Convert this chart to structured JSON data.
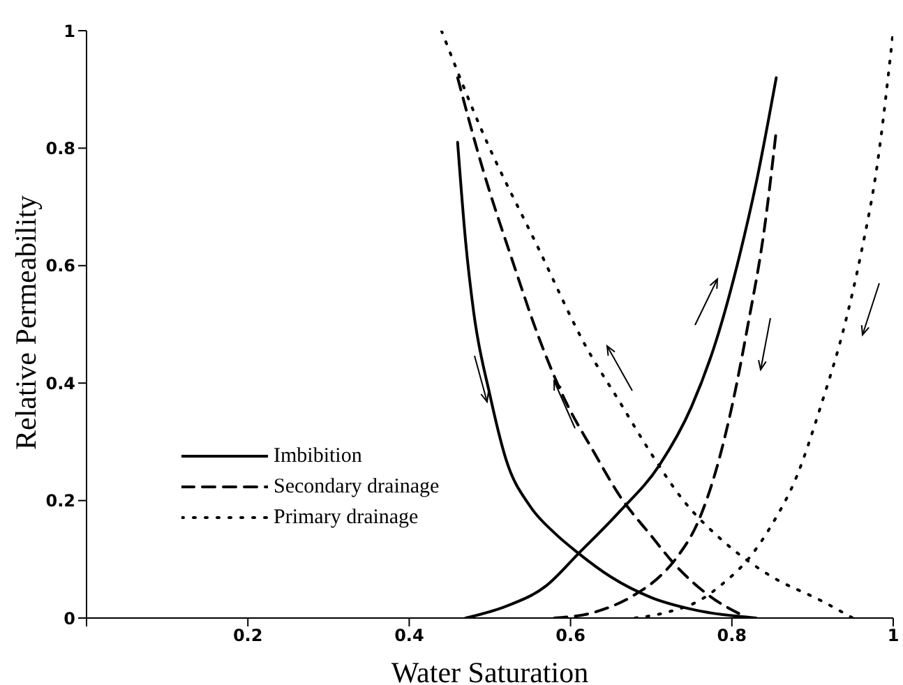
{
  "chart_data": {
    "type": "line",
    "xlabel": "Water Saturation",
    "ylabel": "Relative Permeability",
    "xlim": [
      0,
      1
    ],
    "ylim": [
      0,
      1
    ],
    "xticks": [
      {
        "value": 0,
        "label": null
      },
      0.2,
      0.4,
      0.6,
      0.8,
      1
    ],
    "yticks": [
      0,
      0.2,
      0.4,
      0.6,
      0.8,
      1
    ],
    "grid": false,
    "legend": "bottom left",
    "marker": "none",
    "series": [
      {
        "name": "Imbibition",
        "color": "#000000",
        "line_style": "solid",
        "x": [
          0.46,
          0.47,
          0.48,
          0.5,
          0.52,
          0.55,
          0.58,
          0.61,
          0.65,
          0.7,
          0.75,
          0.83
        ],
        "values": [
          0.81,
          0.64,
          0.52,
          0.38,
          0.27,
          0.19,
          0.145,
          0.11,
          0.07,
          0.035,
          0.015,
          0
        ]
      },
      {
        "color": "#000000",
        "line_style": "solid",
        "x": [
          0.47,
          0.52,
          0.57,
          0.61,
          0.66,
          0.71,
          0.75,
          0.78,
          0.81,
          0.83,
          0.855
        ],
        "values": [
          0,
          0.02,
          0.055,
          0.11,
          0.18,
          0.26,
          0.36,
          0.47,
          0.62,
          0.74,
          0.92
        ]
      },
      {
        "name": "Secondary drainage",
        "color": "#000000",
        "line_style": "dashed",
        "x": [
          0.46,
          0.49,
          0.53,
          0.56,
          0.59,
          0.63,
          0.66,
          0.7,
          0.73,
          0.77,
          0.82
        ],
        "values": [
          0.92,
          0.77,
          0.6,
          0.48,
          0.38,
          0.28,
          0.21,
          0.14,
          0.09,
          0.04,
          0
        ]
      },
      {
        "color": "#000000",
        "line_style": "dashed",
        "x": [
          0.58,
          0.63,
          0.68,
          0.71,
          0.73,
          0.76,
          0.78,
          0.8,
          0.82,
          0.84,
          0.855
        ],
        "values": [
          0,
          0.01,
          0.04,
          0.07,
          0.1,
          0.17,
          0.25,
          0.36,
          0.5,
          0.66,
          0.83
        ]
      },
      {
        "name": "Primary drainage",
        "color": "#000000",
        "line_style": "dotted",
        "x": [
          0.44,
          0.49,
          0.56,
          0.62,
          0.66,
          0.7,
          0.74,
          0.79,
          0.85,
          0.91,
          0.95
        ],
        "values": [
          1,
          0.83,
          0.63,
          0.46,
          0.37,
          0.28,
          0.2,
          0.13,
          0.07,
          0.03,
          0
        ]
      },
      {
        "color": "#000000",
        "line_style": "dotted",
        "x": [
          0.68,
          0.72,
          0.76,
          0.79,
          0.82,
          0.85,
          0.88,
          0.91,
          0.94,
          0.96,
          0.98,
          1
        ],
        "values": [
          0,
          0.01,
          0.03,
          0.06,
          0.1,
          0.16,
          0.24,
          0.36,
          0.5,
          0.62,
          0.77,
          1
        ]
      }
    ]
  }
}
